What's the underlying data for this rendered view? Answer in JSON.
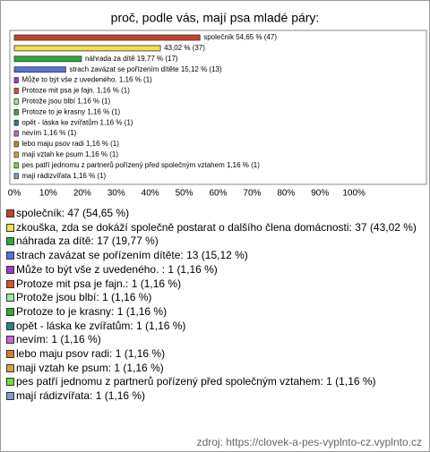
{
  "chart_data": {
    "type": "barh",
    "title": "proč, podle vás, mají psa mladé páry:",
    "categories": [
      "společník: 47 (54,65 %)",
      "zkouška, zda se dokáží společně postarat o dalšího člena domácnosti: 37 (43,02 %)",
      "náhrada za dítě: 17 (19,77 %)",
      "strach zavázat se pořízením dítěte: 13 (15,12 %)",
      "Může to být vše z uvedeného. : 1 (1,16 %)",
      "Protoze mit psa je fajn.: 1 (1,16 %)",
      "Protože jsou blbí: 1 (1,16 %)",
      "Protoze to je krasny: 1 (1,16 %)",
      "opět - láska ke zvířatům: 1 (1,16 %)",
      "nevím: 1 (1,16 %)",
      "lebo maju psov radi: 1 (1,16 %)",
      "maji vztah ke psum: 1 (1,16 %)",
      "pes patří jednomu z partnerů pořízený před společným vztahem: 1 (1,16 %)",
      "mají rádizvířata: 1 (1,16 %)"
    ],
    "values": [
      54.65,
      43.02,
      19.77,
      15.12,
      1.16,
      1.16,
      1.16,
      1.16,
      1.16,
      1.16,
      1.16,
      1.16,
      1.16,
      1.16
    ],
    "value_labels": [
      "společník 54,65 % (47)",
      "43,02 % (37)",
      "náhrada za dítě 19,77 % (17)",
      "strach zavázat se pořízením dítěte 15,12 % (13)",
      "Může to být vše z uvedeného.  1,16 % (1)",
      "Protoze mit psa je fajn. 1,16 % (1)",
      "Protože jsou blbí 1,16 % (1)",
      "Protoze to je krasny 1,16 % (1)",
      "opět - láska ke zvířatům 1,16 % (1)",
      "nevím 1,16 % (1)",
      "lebo maju psov radi 1,16 % (1)",
      "maji vztah ke psum 1,16 % (1)",
      "pes patří jednomu z partnerů pořízený před společným vztahem 1,16 % (1)",
      "mají rádizvířata 1,16 % (1)"
    ],
    "colors": [
      "#c8402e",
      "#f2e04a",
      "#2eaa3a",
      "#5a6fdc",
      "#9a3ccc",
      "#e0502e",
      "#9ee89a",
      "#3aa83a",
      "#2f7f80",
      "#c766cc",
      "#e07a2a",
      "#e0a03a",
      "#6ee040",
      "#7f9ad0"
    ],
    "xlim": [
      0,
      120
    ],
    "xticks": [
      {
        "value": 0,
        "label": "0%"
      },
      {
        "value": 10,
        "label": "10%"
      },
      {
        "value": 20,
        "label": "20%"
      },
      {
        "value": 30,
        "label": "30%"
      },
      {
        "value": 40,
        "label": "40%"
      },
      {
        "value": 50,
        "label": "50%"
      },
      {
        "value": 60,
        "label": "60%"
      },
      {
        "value": 70,
        "label": "70%"
      },
      {
        "value": 80,
        "label": "80%"
      },
      {
        "value": 90,
        "label": "90%"
      },
      {
        "value": 100,
        "label": "100%"
      }
    ],
    "source": "zdroj: https://clovek-a-pes-vyplnto-cz.vyplnto.cz"
  }
}
